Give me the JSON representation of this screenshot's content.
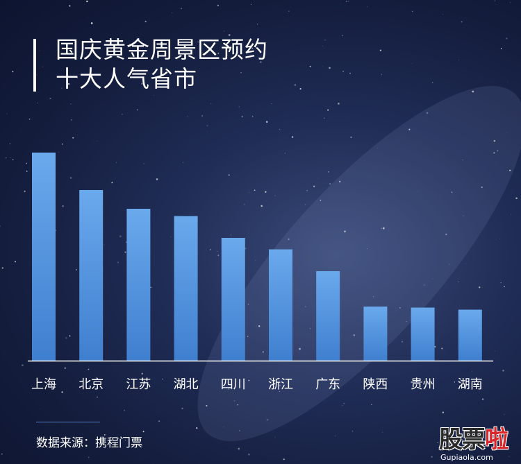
{
  "title": [
    "国庆黄金周景区预约",
    "十大人气省市"
  ],
  "source": "数据来源：携程门票",
  "watermark": {
    "text_main": "股票",
    "text_accent": "啦",
    "url": "Gupiaola.com"
  },
  "colors": {
    "bar_top": "#6aa9ec",
    "bar_bottom": "#3f7fcf",
    "axis": "#ffffff",
    "text": "#ffffff"
  },
  "chart_data": {
    "type": "bar",
    "title": "国庆黄金周景区预约 十大人气省市",
    "xlabel": "",
    "ylabel": "",
    "categories": [
      "上海",
      "北京",
      "江苏",
      "湖北",
      "四川",
      "浙江",
      "广东",
      "陕西",
      "贵州",
      "湖南"
    ],
    "values": [
      100,
      82,
      73,
      69.5,
      59,
      53.5,
      43,
      26,
      25.5,
      24.5
    ],
    "ylim": [
      0,
      100
    ],
    "grid": false,
    "legend": "none"
  }
}
